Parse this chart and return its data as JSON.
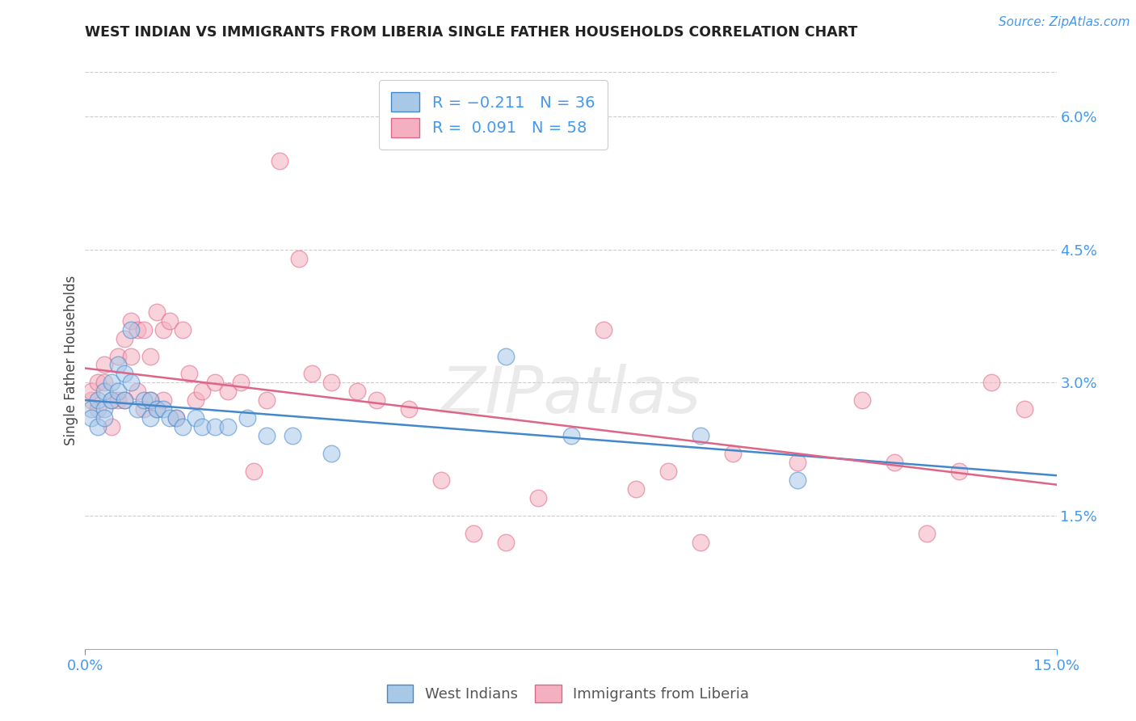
{
  "title": "WEST INDIAN VS IMMIGRANTS FROM LIBERIA SINGLE FATHER HOUSEHOLDS CORRELATION CHART",
  "source": "Source: ZipAtlas.com",
  "ylabel": "Single Father Households",
  "right_yticks": [
    "6.0%",
    "4.5%",
    "3.0%",
    "1.5%"
  ],
  "right_ytick_vals": [
    0.06,
    0.045,
    0.03,
    0.015
  ],
  "xlim": [
    0.0,
    0.15
  ],
  "ylim": [
    0.0,
    0.065
  ],
  "color_blue": "#a8c8e8",
  "color_pink": "#f4b0c0",
  "color_line_blue": "#4488cc",
  "color_line_pink": "#dd6688",
  "watermark": "ZIPatlas",
  "west_indians_x": [
    0.001,
    0.001,
    0.002,
    0.002,
    0.003,
    0.003,
    0.003,
    0.004,
    0.004,
    0.005,
    0.005,
    0.006,
    0.006,
    0.007,
    0.007,
    0.008,
    0.009,
    0.01,
    0.01,
    0.011,
    0.012,
    0.013,
    0.014,
    0.015,
    0.017,
    0.018,
    0.02,
    0.022,
    0.025,
    0.028,
    0.032,
    0.038,
    0.065,
    0.075,
    0.095,
    0.11
  ],
  "west_indians_y": [
    0.027,
    0.026,
    0.028,
    0.025,
    0.029,
    0.027,
    0.026,
    0.03,
    0.028,
    0.032,
    0.029,
    0.031,
    0.028,
    0.036,
    0.03,
    0.027,
    0.028,
    0.028,
    0.026,
    0.027,
    0.027,
    0.026,
    0.026,
    0.025,
    0.026,
    0.025,
    0.025,
    0.025,
    0.026,
    0.024,
    0.024,
    0.022,
    0.033,
    0.024,
    0.024,
    0.019
  ],
  "liberia_x": [
    0.001,
    0.001,
    0.002,
    0.002,
    0.003,
    0.003,
    0.004,
    0.004,
    0.005,
    0.005,
    0.006,
    0.006,
    0.007,
    0.007,
    0.008,
    0.008,
    0.009,
    0.009,
    0.01,
    0.01,
    0.011,
    0.011,
    0.012,
    0.012,
    0.013,
    0.014,
    0.015,
    0.016,
    0.017,
    0.018,
    0.02,
    0.022,
    0.024,
    0.026,
    0.028,
    0.03,
    0.033,
    0.035,
    0.038,
    0.042,
    0.045,
    0.05,
    0.055,
    0.06,
    0.065,
    0.07,
    0.08,
    0.085,
    0.09,
    0.095,
    0.1,
    0.11,
    0.12,
    0.125,
    0.13,
    0.135,
    0.14,
    0.145
  ],
  "liberia_y": [
    0.028,
    0.029,
    0.03,
    0.027,
    0.032,
    0.03,
    0.028,
    0.025,
    0.033,
    0.028,
    0.035,
    0.028,
    0.037,
    0.033,
    0.036,
    0.029,
    0.036,
    0.027,
    0.033,
    0.028,
    0.038,
    0.027,
    0.036,
    0.028,
    0.037,
    0.026,
    0.036,
    0.031,
    0.028,
    0.029,
    0.03,
    0.029,
    0.03,
    0.02,
    0.028,
    0.055,
    0.044,
    0.031,
    0.03,
    0.029,
    0.028,
    0.027,
    0.019,
    0.013,
    0.012,
    0.017,
    0.036,
    0.018,
    0.02,
    0.012,
    0.022,
    0.021,
    0.028,
    0.021,
    0.013,
    0.02,
    0.03,
    0.027
  ]
}
